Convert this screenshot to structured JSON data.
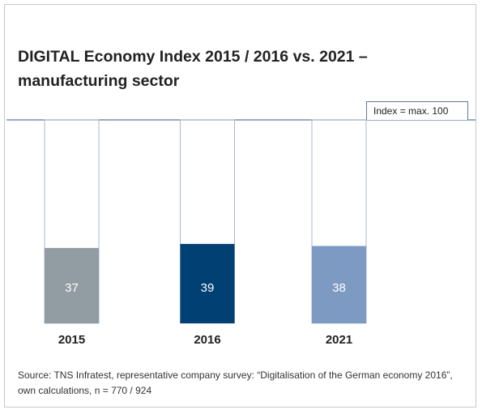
{
  "chart_data": {
    "type": "bar",
    "title": "DIGITAL Economy Index 2015 / 2016 vs. 2021 – manufacturing sector",
    "annotation": "Index = max. 100",
    "categories": [
      "2015",
      "2016",
      "2021"
    ],
    "values": [
      37,
      39,
      38
    ],
    "colors": [
      "#929ca3",
      "#004072",
      "#7d9ac3"
    ],
    "ylim": [
      0,
      100
    ],
    "source": "Source: TNS Infratest, representative company survey: “Digitalisation of the German economy 2016”, own calculations, n = 770 / 924"
  }
}
